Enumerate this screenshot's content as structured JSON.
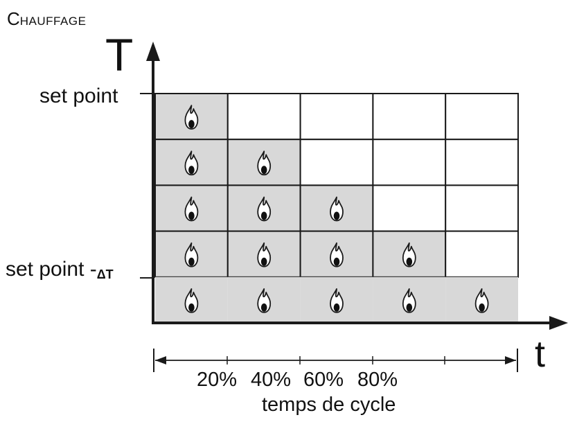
{
  "title": {
    "first_letter": "C",
    "rest": "HAUFFAGE"
  },
  "axes": {
    "y_label": "T",
    "x_label": "t"
  },
  "levels": {
    "set_point": "set point",
    "set_point_minus": "set point -",
    "delta_t": "ΔT"
  },
  "percent_labels": [
    "20%",
    "40%",
    "60%",
    "80%"
  ],
  "cycle_label": "temps de cycle",
  "icons": {
    "cell_icon": "flame-icon"
  },
  "colors": {
    "on_fill": "#d8d8d8",
    "off_fill": "#ffffff",
    "line": "#1a1a1a"
  },
  "grid": {
    "columns": 5,
    "rows_on_counts": [
      1,
      2,
      3,
      4,
      5
    ]
  }
}
